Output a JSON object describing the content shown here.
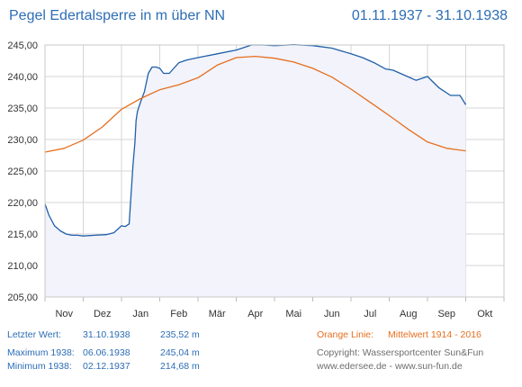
{
  "chart_data": {
    "type": "line",
    "title": "Pegel Edertalsperre in m über NN",
    "period": "01.11.1937 - 31.10.1938",
    "categories": [
      "Nov",
      "Dez",
      "Jan",
      "Feb",
      "Mär",
      "Apr",
      "Mai",
      "Jun",
      "Jul",
      "Aug",
      "Sep",
      "Okt"
    ],
    "ylim": [
      205,
      245
    ],
    "yticks": [
      "205,00",
      "210,00",
      "215,00",
      "220,00",
      "225,00",
      "230,00",
      "235,00",
      "240,00",
      "245,00"
    ],
    "grid": true,
    "series": [
      {
        "key": "level_1938",
        "color": "#1f5fa8",
        "x": [
          0,
          0.1,
          0.25,
          0.4,
          0.55,
          0.7,
          0.85,
          1.0,
          1.3,
          1.6,
          1.8,
          2.0,
          2.1,
          2.2,
          2.3,
          2.35,
          2.38,
          2.42,
          2.5,
          2.6,
          2.7,
          2.8,
          2.9,
          3.0,
          3.1,
          3.25,
          3.5,
          3.7,
          4.0,
          4.5,
          5.0,
          5.4,
          5.7,
          6.0,
          6.5,
          7.0,
          7.5,
          8.0,
          8.3,
          8.6,
          8.9,
          9.1,
          9.4,
          9.7,
          10.0,
          10.3,
          10.6,
          10.85,
          11.0
        ],
        "y": [
          219.8,
          218.0,
          216.3,
          215.5,
          215.0,
          214.8,
          214.8,
          214.68,
          214.8,
          214.9,
          215.2,
          216.3,
          216.2,
          216.6,
          226.0,
          229.5,
          233.0,
          234.5,
          236.0,
          237.6,
          240.5,
          241.5,
          241.5,
          241.3,
          240.5,
          240.5,
          242.2,
          242.6,
          243.0,
          243.6,
          244.2,
          245.0,
          245.0,
          244.9,
          245.04,
          244.9,
          244.5,
          243.6,
          243.0,
          242.2,
          241.2,
          241.0,
          240.2,
          239.4,
          240.0,
          238.2,
          237.0,
          237.0,
          235.52
        ]
      },
      {
        "key": "mean_1914_2016",
        "color": "#e56f1e",
        "x": [
          0,
          0.5,
          1.0,
          1.5,
          2.0,
          2.5,
          3.0,
          3.5,
          4.0,
          4.5,
          5.0,
          5.5,
          6.0,
          6.5,
          7.0,
          7.5,
          8.0,
          8.5,
          9.0,
          9.5,
          10.0,
          10.5,
          11.0
        ],
        "y": [
          228.0,
          228.6,
          229.9,
          232.0,
          234.8,
          236.5,
          237.9,
          238.7,
          239.8,
          241.8,
          243.0,
          243.2,
          242.9,
          242.3,
          241.3,
          239.9,
          238.0,
          235.9,
          233.8,
          231.6,
          229.6,
          228.6,
          228.2
        ]
      }
    ]
  },
  "footer": {
    "last_label": "Letzter Wert:",
    "last_date": "31.10.1938",
    "last_value": "235,52 m",
    "max_label": "Maximum 1938:",
    "max_date": "06.06.1938",
    "max_value": "245,04 m",
    "min_label": "Minimum  1938:",
    "min_date": "02.12.1937",
    "min_value": "214,68 m",
    "legend_label": "Orange Linie:",
    "legend_desc": "Mittelwert   1914 - 2016",
    "copyright": "Copyright: Wassersportcenter Sun&Fun",
    "websites": "www.edersee.de   -   www.sun-fun.de"
  },
  "colors": {
    "title": "#2d6db5",
    "level_line": "#1f5fa8",
    "mean_line": "#e56f1e",
    "fill": "#f2f3fb",
    "grid": "#d6d6d6"
  }
}
